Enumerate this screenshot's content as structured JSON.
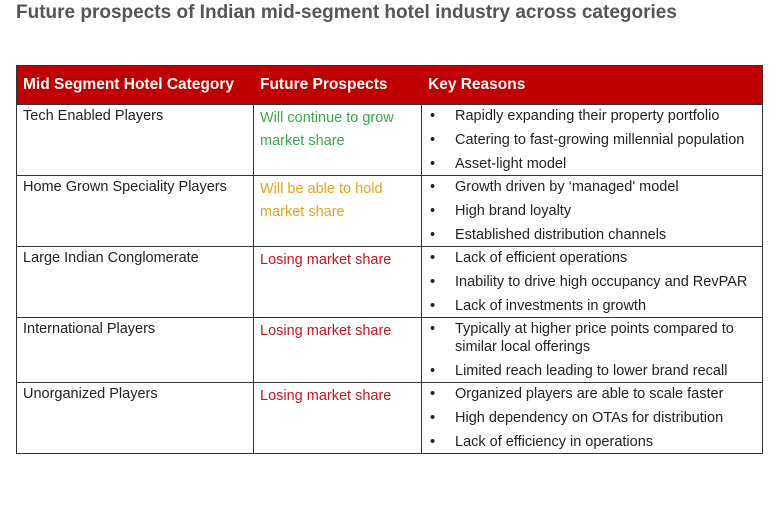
{
  "title": "Future prospects of  Indian mid-segment hotel industry across categories",
  "headers": [
    "Mid Segment Hotel Category",
    "Future Prospects",
    "Key Reasons"
  ],
  "colors": {
    "header_bg": "#c00000",
    "green": "#3aa84a",
    "orange": "#e8a21e",
    "red": "#c8141e"
  },
  "rows": [
    {
      "category": "Tech Enabled Players",
      "prospect": "Will continue to grow market share",
      "prospect_color": "green",
      "reasons": [
        "Rapidly expanding their property portfolio",
        "Catering to fast-growing millennial population",
        "Asset-light model"
      ]
    },
    {
      "category": "Home Grown Speciality Players",
      "prospect": "Will be able to hold market share",
      "prospect_color": "orange",
      "reasons": [
        "Growth driven by ‘managed' model",
        "High brand loyalty",
        "Established distribution channels"
      ]
    },
    {
      "category": "Large Indian Conglomerate",
      "prospect": "Losing market share",
      "prospect_color": "red",
      "reasons": [
        "Lack of efficient operations",
        "Inability to drive high occupancy and RevPAR",
        "Lack of investments in growth"
      ]
    },
    {
      "category": "International Players",
      "prospect": "Losing market share",
      "prospect_color": "red",
      "reasons": [
        "Typically at higher price points compared to similar local offerings",
        "Limited reach leading to lower brand recall"
      ]
    },
    {
      "category": "Unorganized Players",
      "prospect": "Losing market share",
      "prospect_color": "red",
      "reasons": [
        "Organized players are able to scale faster",
        "High dependency on OTAs for distribution",
        "Lack of efficiency in operations"
      ]
    }
  ]
}
